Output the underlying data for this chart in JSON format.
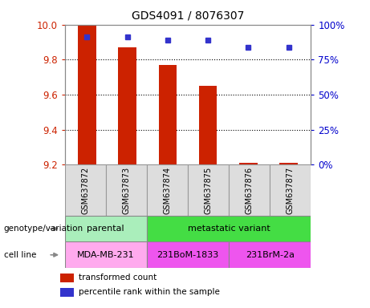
{
  "title": "GDS4091 / 8076307",
  "samples": [
    "GSM637872",
    "GSM637873",
    "GSM637874",
    "GSM637875",
    "GSM637876",
    "GSM637877"
  ],
  "bar_values": [
    10.0,
    9.87,
    9.77,
    9.65,
    9.21,
    9.21
  ],
  "bar_bottom": 9.2,
  "percentile_values": [
    91,
    91,
    89,
    89,
    84,
    84
  ],
  "ylim_left": [
    9.2,
    10.0
  ],
  "ylim_right": [
    0,
    100
  ],
  "yticks_left": [
    9.2,
    9.4,
    9.6,
    9.8,
    10.0
  ],
  "yticks_right": [
    0,
    25,
    50,
    75,
    100
  ],
  "bar_color": "#cc2200",
  "dot_color": "#3333cc",
  "grid_color": "#000000",
  "bg_color": "#ffffff",
  "genotype_groups": [
    {
      "label": "parental",
      "start": 0,
      "end": 2,
      "color": "#aaeebb"
    },
    {
      "label": "metastatic variant",
      "start": 2,
      "end": 6,
      "color": "#44dd44"
    }
  ],
  "cell_line_groups": [
    {
      "label": "MDA-MB-231",
      "start": 0,
      "end": 2,
      "color": "#ffaaee"
    },
    {
      "label": "231BoM-1833",
      "start": 2,
      "end": 4,
      "color": "#ee55ee"
    },
    {
      "label": "231BrM-2a",
      "start": 4,
      "end": 6,
      "color": "#ee55ee"
    }
  ],
  "legend_items": [
    {
      "label": "transformed count",
      "color": "#cc2200"
    },
    {
      "label": "percentile rank within the sample",
      "color": "#3333cc"
    }
  ],
  "bar_width": 0.45,
  "tick_label_color_left": "#cc2200",
  "tick_label_color_right": "#0000cc",
  "genotype_label": "genotype/variation",
  "cellline_label": "cell line",
  "sample_box_color": "#dddddd",
  "sample_box_edge_color": "#999999"
}
